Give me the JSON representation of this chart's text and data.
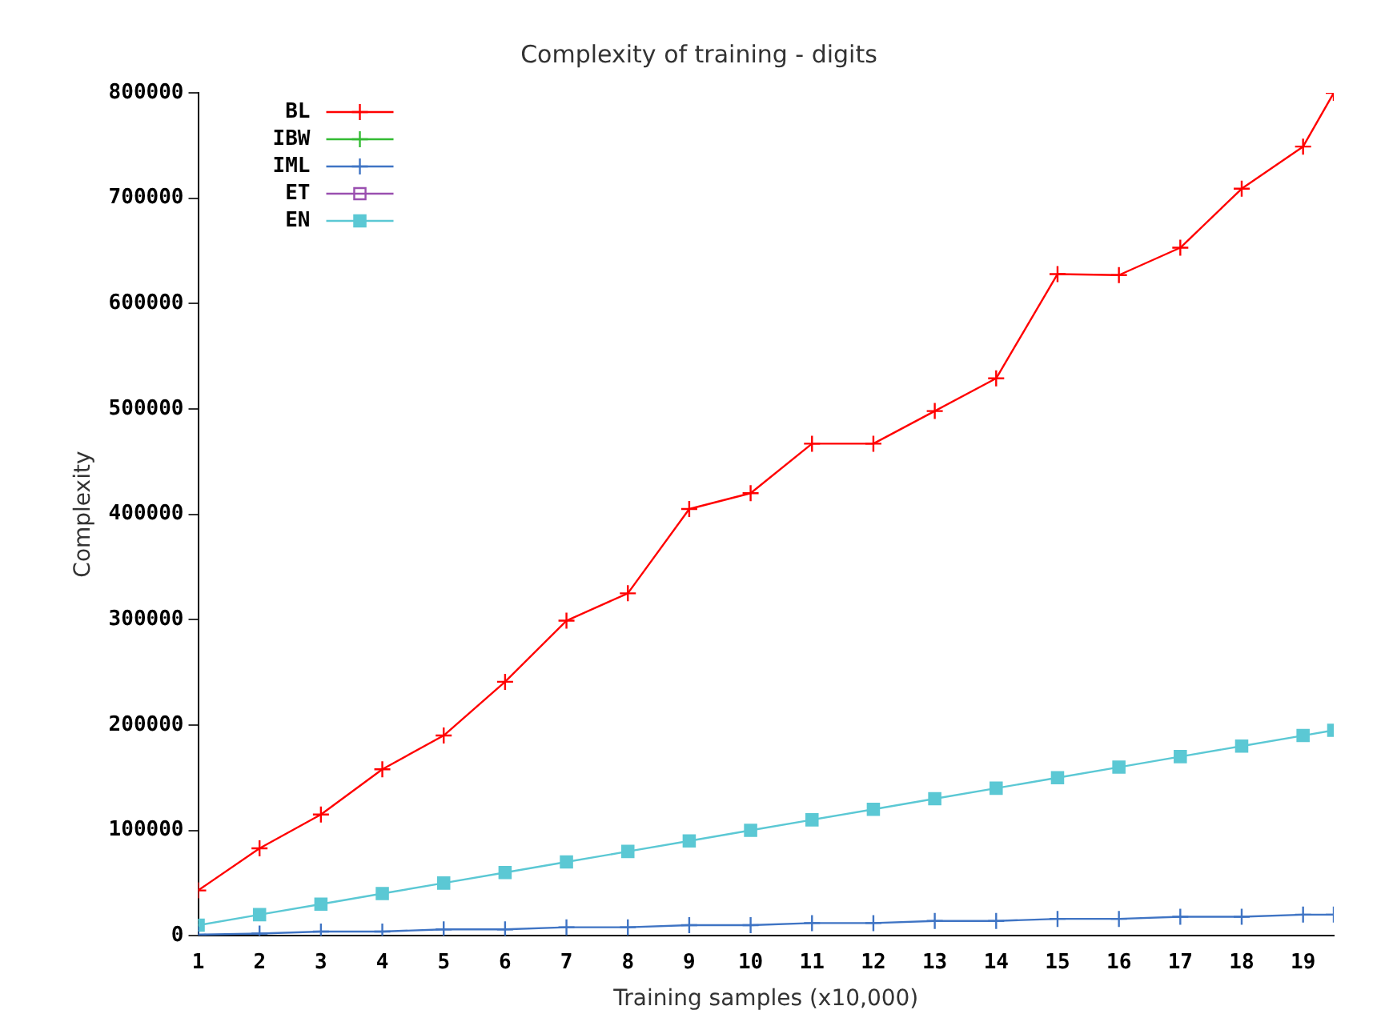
{
  "chart_data": {
    "type": "line",
    "title": "Complexity of training - digits",
    "xlabel": "Training samples (x10,000)",
    "ylabel": "Complexity",
    "x": [
      1,
      2,
      3,
      4,
      5,
      6,
      7,
      8,
      9,
      10,
      11,
      12,
      13,
      14,
      15,
      16,
      17,
      18,
      19,
      19.5
    ],
    "series": [
      {
        "name": "BL",
        "color": "#ff0000",
        "marker": "cross",
        "values": [
          43000,
          83000,
          115000,
          158000,
          190000,
          241000,
          299000,
          325000,
          405000,
          420000,
          467000,
          467000,
          498000,
          529000,
          628000,
          627000,
          653000,
          709000,
          749000,
          800000
        ]
      },
      {
        "name": "IBW",
        "color": "#33bb33",
        "marker": "cross",
        "values": [
          null,
          null,
          null,
          null,
          null,
          null,
          null,
          null,
          null,
          null,
          null,
          null,
          null,
          null,
          null,
          null,
          null,
          null,
          null,
          null
        ]
      },
      {
        "name": "IML",
        "color": "#3f74c4",
        "marker": "cross",
        "values": [
          1000,
          2000,
          4000,
          4000,
          6000,
          6000,
          8000,
          8000,
          10000,
          10000,
          12000,
          12000,
          14000,
          14000,
          16000,
          16000,
          18000,
          18000,
          20000,
          20000
        ]
      },
      {
        "name": "ET",
        "color": "#9a4fb0",
        "marker": "square",
        "values": [
          null,
          null,
          null,
          null,
          null,
          null,
          null,
          null,
          null,
          null,
          null,
          null,
          null,
          null,
          null,
          null,
          null,
          null,
          null,
          null
        ]
      },
      {
        "name": "EN",
        "color": "#5bc8d4",
        "marker": "square",
        "values": [
          10000,
          20000,
          30000,
          40000,
          50000,
          60000,
          70000,
          80000,
          90000,
          100000,
          110000,
          120000,
          130000,
          140000,
          150000,
          160000,
          170000,
          180000,
          190000,
          195000
        ]
      }
    ],
    "xlim": [
      1,
      19.5
    ],
    "xticks": [
      1,
      2,
      3,
      4,
      5,
      6,
      7,
      8,
      9,
      10,
      11,
      12,
      13,
      14,
      15,
      16,
      17,
      18,
      19
    ],
    "ylim": [
      0,
      800000
    ],
    "yticks": [
      0,
      100000,
      200000,
      300000,
      400000,
      500000,
      600000,
      700000,
      800000
    ],
    "grid": false,
    "legend": "top left",
    "line_style": "solid"
  }
}
